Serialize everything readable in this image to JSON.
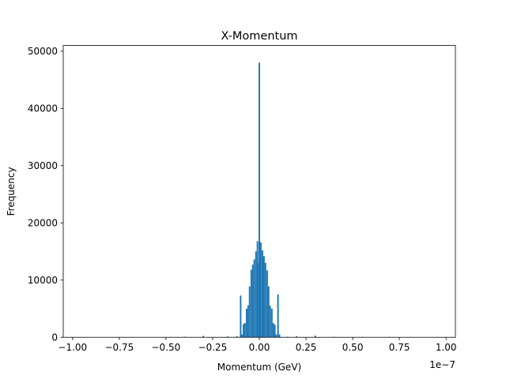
{
  "chart_data": {
    "type": "bar",
    "title": "X-Momentum",
    "xlabel": "Momentum (GeV)",
    "ylabel": "Frequency",
    "x_offset_label": "1e−7",
    "xlim": [
      -1.05,
      1.05
    ],
    "ylim": [
      0,
      51000
    ],
    "xticks": [
      -1.0,
      -0.75,
      -0.5,
      -0.25,
      0.0,
      0.25,
      0.5,
      0.75,
      1.0
    ],
    "xtick_labels": [
      "−1.00",
      "−0.75",
      "−0.50",
      "−0.25",
      "0.00",
      "0.25",
      "0.50",
      "0.75",
      "1.00"
    ],
    "yticks": [
      0,
      10000,
      20000,
      30000,
      40000,
      50000
    ],
    "ytick_labels": [
      "0",
      "10000",
      "20000",
      "30000",
      "40000",
      "50000"
    ],
    "x_units_note": "x values are in units of 1e-7 GeV",
    "bin_width": 0.0083,
    "bins": [
      {
        "x": -0.1,
        "y": 7300
      },
      {
        "x": -0.092,
        "y": 500
      },
      {
        "x": -0.085,
        "y": 2300
      },
      {
        "x": -0.077,
        "y": 2500
      },
      {
        "x": -0.068,
        "y": 5000
      },
      {
        "x": -0.06,
        "y": 5600
      },
      {
        "x": -0.052,
        "y": 8900
      },
      {
        "x": -0.043,
        "y": 11800
      },
      {
        "x": -0.035,
        "y": 12700
      },
      {
        "x": -0.027,
        "y": 13600
      },
      {
        "x": -0.018,
        "y": 15000
      },
      {
        "x": -0.01,
        "y": 16800
      },
      {
        "x": -0.002,
        "y": 13000
      },
      {
        "x": 0.0,
        "y": 48000
      },
      {
        "x": 0.008,
        "y": 16600
      },
      {
        "x": 0.017,
        "y": 15200
      },
      {
        "x": 0.025,
        "y": 14200
      },
      {
        "x": 0.033,
        "y": 13000
      },
      {
        "x": 0.042,
        "y": 11700
      },
      {
        "x": 0.05,
        "y": 8900
      },
      {
        "x": 0.058,
        "y": 5500
      },
      {
        "x": 0.067,
        "y": 5000
      },
      {
        "x": 0.075,
        "y": 2500
      },
      {
        "x": 0.083,
        "y": 2200
      },
      {
        "x": 0.09,
        "y": 500
      },
      {
        "x": 0.1,
        "y": 7500
      },
      {
        "x": 0.108,
        "y": 500
      },
      {
        "x": -0.12,
        "y": 200
      },
      {
        "x": -0.17,
        "y": 150
      },
      {
        "x": -0.3,
        "y": 250
      },
      {
        "x": -0.4,
        "y": 100
      },
      {
        "x": 0.2,
        "y": 200
      },
      {
        "x": 0.3,
        "y": 300
      },
      {
        "x": 0.4,
        "y": 100
      },
      {
        "x": 0.15,
        "y": 100
      }
    ]
  }
}
